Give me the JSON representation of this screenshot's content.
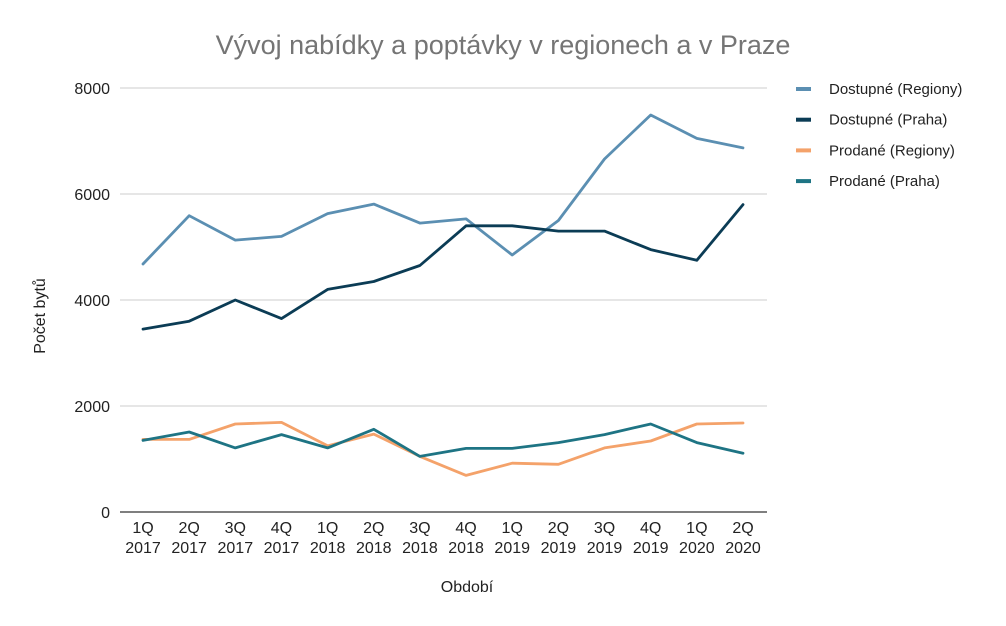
{
  "chart_data": {
    "type": "line",
    "title": "Vývoj nabídky a poptávky v regionech a v Praze",
    "xlabel": "Období",
    "ylabel": "Počet bytů",
    "ylim": [
      0,
      8000
    ],
    "yticks": [
      "0",
      "2000",
      "4000",
      "6000",
      "8000"
    ],
    "grid": true,
    "legend_position": "right",
    "categories": [
      [
        "1Q",
        "2017"
      ],
      [
        "2Q",
        "2017"
      ],
      [
        "3Q",
        "2017"
      ],
      [
        "4Q",
        "2017"
      ],
      [
        "1Q",
        "2018"
      ],
      [
        "2Q",
        "2018"
      ],
      [
        "3Q",
        "2018"
      ],
      [
        "4Q",
        "2018"
      ],
      [
        "1Q",
        "2019"
      ],
      [
        "2Q",
        "2019"
      ],
      [
        "3Q",
        "2019"
      ],
      [
        "4Q",
        "2019"
      ],
      [
        "1Q",
        "2020"
      ],
      [
        "2Q",
        "2020"
      ]
    ],
    "series": [
      {
        "name": "Dostupné (Regiony)",
        "color": "#5b8fb2",
        "values": [
          4680,
          5590,
          5130,
          5200,
          5630,
          5810,
          5450,
          5530,
          4850,
          5500,
          6660,
          7490,
          7050,
          6870
        ]
      },
      {
        "name": "Dostupné (Praha)",
        "color": "#0b3c55",
        "values": [
          3450,
          3600,
          4000,
          3650,
          4200,
          4350,
          4650,
          5400,
          5400,
          5300,
          5300,
          4950,
          4750,
          5800
        ]
      },
      {
        "name": "Prodané (Regiony)",
        "color": "#f4a26a",
        "values": [
          1370,
          1370,
          1660,
          1690,
          1250,
          1470,
          1050,
          690,
          920,
          900,
          1210,
          1340,
          1660,
          1680
        ]
      },
      {
        "name": "Prodané (Praha)",
        "color": "#1e7484",
        "values": [
          1350,
          1510,
          1210,
          1460,
          1210,
          1560,
          1050,
          1200,
          1200,
          1310,
          1460,
          1660,
          1310,
          1110
        ]
      }
    ]
  }
}
